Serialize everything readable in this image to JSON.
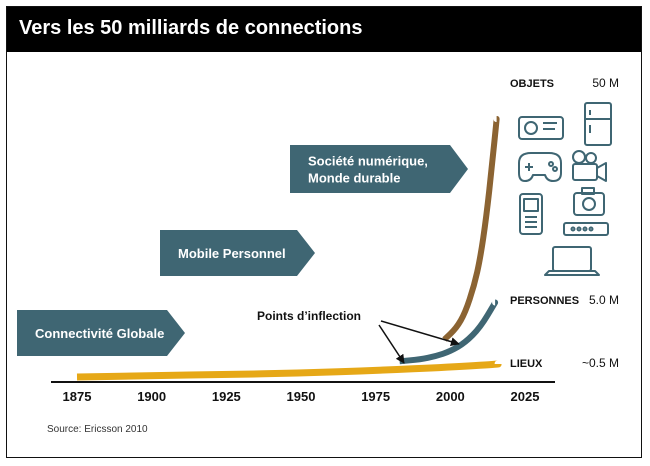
{
  "title": "Vers les 50 milliards de connections",
  "source": "Source: Ericsson 2010",
  "colors": {
    "lieux": "#e6a817",
    "personnes": "#3f6673",
    "objets": "#8b6332",
    "arrow_fill": "#3f6673",
    "icon": "#3f6673"
  },
  "phases": [
    {
      "label_lines": [
        "Connectivité Globale"
      ]
    },
    {
      "label_lines": [
        "Mobile Personnel"
      ]
    },
    {
      "label_lines": [
        "Société numérique,",
        "Monde durable"
      ]
    }
  ],
  "annotation": "Points d’inflection",
  "icons": [
    "projector-icon",
    "refrigerator-icon",
    "gamepad-icon",
    "video-camera-icon",
    "phone-icon",
    "photo-camera-icon",
    "router-icon",
    "laptop-icon"
  ],
  "chart_data": {
    "type": "line",
    "xlabel": "",
    "ylabel": "",
    "x_ticks": [
      "1875",
      "1900",
      "1925",
      "1950",
      "1975",
      "2000",
      "2025"
    ],
    "xlim": [
      1865,
      2035
    ],
    "series": [
      {
        "name": "LIEUX",
        "value_label": "~0.5 M",
        "x": [
          1875,
          1900,
          1925,
          1950,
          1975,
          2000,
          2016
        ],
        "y": [
          0.0,
          0.05,
          0.1,
          0.15,
          0.25,
          0.38,
          0.5
        ]
      },
      {
        "name": "PERSONNES",
        "value_label": "5.0 M",
        "x": [
          1983,
          1990,
          1995,
          2000,
          2005,
          2010,
          2015
        ],
        "y": [
          0.3,
          0.45,
          0.7,
          1.1,
          1.8,
          3.0,
          5.0
        ]
      },
      {
        "name": "OBJETS",
        "value_label": "50 M",
        "x": [
          1998,
          2002,
          2005,
          2008,
          2010,
          2012,
          2014,
          2015.5
        ],
        "y": [
          1.0,
          3.5,
          7.0,
          13.0,
          19.0,
          28.0,
          40.0,
          50.0
        ]
      }
    ]
  }
}
